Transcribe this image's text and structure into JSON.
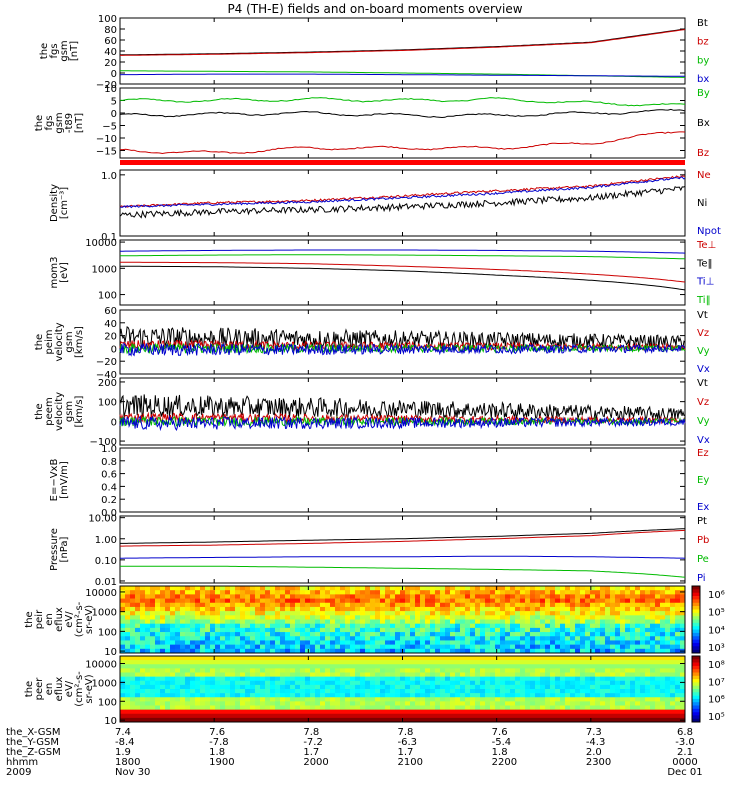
{
  "title": "P4 (TH-E) fields and on-board moments overview",
  "ephemeris": {
    "row_labels": [
      "the_X-GSM",
      "the_Y-GSM",
      "the_Z-GSM",
      "hhmm",
      "2009"
    ],
    "columns": [
      [
        "7.4",
        "-8.4",
        "1.9",
        "1800",
        "Nov 30"
      ],
      [
        "7.6",
        "-7.8",
        "1.8",
        "1900",
        ""
      ],
      [
        "7.8",
        "-7.2",
        "1.7",
        "2000",
        ""
      ],
      [
        "7.8",
        "-6.3",
        "1.7",
        "2100",
        ""
      ],
      [
        "7.6",
        "-5.4",
        "1.8",
        "2200",
        ""
      ],
      [
        "7.3",
        "-4.3",
        "2.0",
        "2300",
        ""
      ],
      [
        "6.8",
        "-3.0",
        "2.1",
        "0000",
        "Dec 01"
      ]
    ]
  },
  "colorbar_labels": {
    "ion": [
      "10⁶",
      "10⁵",
      "10⁴",
      "10³"
    ],
    "electron": [
      "10⁸",
      "10⁷",
      "10⁶",
      "10⁵"
    ]
  },
  "chart_data": [
    {
      "type": "line",
      "ylabel": [
        "the",
        "fgs",
        "gsm",
        "[nT]"
      ],
      "ylim": [
        -20,
        100
      ],
      "ticks": [
        "100",
        "80",
        "60",
        "40",
        "20",
        "0",
        "−20"
      ],
      "tick_values": [
        100,
        80,
        60,
        40,
        20,
        0,
        -20
      ],
      "x": [
        0,
        1,
        2,
        3,
        4,
        5,
        6
      ],
      "series": [
        {
          "name": "Bt",
          "color": "#000000",
          "values": [
            33,
            35,
            38,
            42,
            48,
            56,
            80
          ]
        },
        {
          "name": "bz",
          "color": "#cc0000",
          "values": [
            32,
            34,
            37,
            41,
            47,
            55,
            79
          ]
        },
        {
          "name": "by",
          "color": "#00bb00",
          "values": [
            4,
            3,
            2,
            0,
            -2,
            -5,
            -8
          ]
        },
        {
          "name": "bx",
          "color": "#0000cc",
          "values": [
            -3,
            -2,
            -2,
            -3,
            -4,
            -5,
            -6
          ]
        }
      ]
    },
    {
      "type": "line",
      "ylabel": [
        "the",
        "fgs",
        "gsm",
        "-t89",
        "[nT]"
      ],
      "ylim": [
        -18,
        10
      ],
      "ticks": [
        "10",
        "5",
        "0",
        "−5",
        "−10",
        "−15"
      ],
      "tick_values": [
        10,
        5,
        0,
        -5,
        -10,
        -15
      ],
      "x": [
        0,
        1,
        2,
        3,
        4,
        5,
        6
      ],
      "series": [
        {
          "name": "By",
          "color": "#00bb00",
          "values": [
            5,
            5,
            5.5,
            5,
            5.5,
            4,
            3
          ]
        },
        {
          "name": "Bx",
          "color": "#000000",
          "values": [
            -1,
            -0.5,
            0,
            -1,
            -1,
            0,
            1
          ]
        },
        {
          "name": "Bz",
          "color": "#cc0000",
          "values": [
            -15,
            -16,
            -14,
            -14,
            -14,
            -12,
            -7
          ]
        }
      ]
    },
    {
      "type": "line",
      "ylabel": [
        "Density",
        "[cm⁻³]"
      ],
      "scale": "log",
      "ylim": [
        0.1,
        1.2
      ],
      "ticks": [
        "1.0",
        "0.1"
      ],
      "tick_values": [
        1.0,
        0.1
      ],
      "x": [
        0,
        1,
        2,
        3,
        4,
        5,
        6
      ],
      "series": [
        {
          "name": "Ne",
          "color": "#cc0000",
          "values": [
            0.3,
            0.35,
            0.38,
            0.45,
            0.55,
            0.65,
            0.95
          ]
        },
        {
          "name": "Ni",
          "color": "#000000",
          "values": [
            0.22,
            0.25,
            0.27,
            0.3,
            0.35,
            0.42,
            0.6
          ]
        },
        {
          "name": "Npot",
          "color": "#0000cc",
          "values": [
            0.3,
            0.33,
            0.36,
            0.42,
            0.5,
            0.62,
            0.9
          ]
        }
      ]
    },
    {
      "type": "line",
      "ylabel": [
        "mom3",
        "[eV]"
      ],
      "scale": "log",
      "ylim": [
        40,
        12000
      ],
      "ticks": [
        "10000",
        "1000",
        "100"
      ],
      "tick_values": [
        10000,
        1000,
        100
      ],
      "x": [
        0,
        1,
        2,
        3,
        4,
        5,
        6
      ],
      "series": [
        {
          "name": "Te⊥",
          "color": "#cc0000",
          "values": [
            1700,
            1650,
            1500,
            1200,
            900,
            600,
            300
          ]
        },
        {
          "name": "Te‖",
          "color": "#000000",
          "values": [
            1200,
            1150,
            1000,
            800,
            550,
            350,
            150
          ]
        },
        {
          "name": "Ti⊥",
          "color": "#0000cc",
          "values": [
            4500,
            4800,
            5000,
            5000,
            4800,
            4500,
            3800
          ]
        },
        {
          "name": "Ti‖",
          "color": "#00bb00",
          "values": [
            3000,
            3200,
            3300,
            3200,
            3000,
            2800,
            2300
          ]
        }
      ]
    },
    {
      "type": "line",
      "ylabel": [
        "the",
        "peim",
        "velocity",
        "gsm",
        "[km/s]"
      ],
      "ylim": [
        -40,
        60
      ],
      "ticks": [
        "60",
        "40",
        "20",
        "0",
        "−20",
        "−40"
      ],
      "tick_values": [
        60,
        40,
        20,
        0,
        -20,
        -40
      ],
      "x": [
        0,
        1,
        2,
        3,
        4,
        5,
        6
      ],
      "series": [
        {
          "name": "Vt",
          "color": "#000000",
          "values": [
            18,
            16,
            15,
            14,
            13,
            12,
            10
          ]
        },
        {
          "name": "Vz",
          "color": "#cc0000",
          "values": [
            5,
            5,
            4,
            4,
            3,
            3,
            2
          ]
        },
        {
          "name": "Vy",
          "color": "#00bb00",
          "values": [
            0,
            0,
            0,
            0,
            0,
            0,
            0
          ]
        },
        {
          "name": "Vx",
          "color": "#0000cc",
          "values": [
            -2,
            -2,
            -2,
            -1,
            -1,
            -1,
            0
          ]
        }
      ]
    },
    {
      "type": "line",
      "ylabel": [
        "the",
        "peem",
        "velocity",
        "gsm",
        "[km/s]"
      ],
      "ylim": [
        -120,
        220
      ],
      "ticks": [
        "200",
        "100",
        "0",
        "−100"
      ],
      "tick_values": [
        200,
        100,
        0,
        -100
      ],
      "x": [
        0,
        1,
        2,
        3,
        4,
        5,
        6
      ],
      "series": [
        {
          "name": "Vt",
          "color": "#000000",
          "values": [
            80,
            75,
            70,
            65,
            55,
            45,
            35
          ]
        },
        {
          "name": "Vz",
          "color": "#cc0000",
          "values": [
            20,
            18,
            15,
            12,
            10,
            8,
            5
          ]
        },
        {
          "name": "Vy",
          "color": "#00bb00",
          "values": [
            0,
            0,
            0,
            0,
            0,
            0,
            0
          ]
        },
        {
          "name": "Vx",
          "color": "#0000cc",
          "values": [
            -10,
            -10,
            -8,
            -8,
            -6,
            -5,
            -3
          ]
        }
      ]
    },
    {
      "type": "line",
      "ylabel": [
        "E=−VxB",
        "[mV/m]"
      ],
      "ylim": [
        0,
        1
      ],
      "ticks": [
        "1.0",
        "0.8",
        "0.6",
        "0.4",
        "0.2",
        "0.0"
      ],
      "tick_values": [
        1.0,
        0.8,
        0.6,
        0.4,
        0.2,
        0.0
      ],
      "x": [],
      "series": [
        {
          "name": "Ez",
          "color": "#cc0000",
          "values": []
        },
        {
          "name": "Ey",
          "color": "#00bb00",
          "values": []
        },
        {
          "name": "Ex",
          "color": "#0000cc",
          "values": []
        }
      ]
    },
    {
      "type": "line",
      "ylabel": [
        "Pressure",
        "[nPa]"
      ],
      "scale": "log",
      "ylim": [
        0.008,
        12
      ],
      "ticks": [
        "10.00",
        "1.00",
        "0.10",
        "0.01"
      ],
      "tick_values": [
        10,
        1,
        0.1,
        0.01
      ],
      "x": [
        0,
        1,
        2,
        3,
        4,
        5,
        6
      ],
      "series": [
        {
          "name": "Pt",
          "color": "#000000",
          "values": [
            0.6,
            0.7,
            0.85,
            1.0,
            1.3,
            1.8,
            3.0
          ]
        },
        {
          "name": "Pb",
          "color": "#cc0000",
          "values": [
            0.45,
            0.5,
            0.6,
            0.75,
            1.0,
            1.4,
            2.5
          ]
        },
        {
          "name": "Pe",
          "color": "#00bb00",
          "values": [
            0.05,
            0.05,
            0.045,
            0.04,
            0.035,
            0.03,
            0.015
          ]
        },
        {
          "name": "Pi",
          "color": "#0000cc",
          "values": [
            0.12,
            0.13,
            0.14,
            0.14,
            0.15,
            0.14,
            0.12
          ]
        }
      ]
    },
    {
      "type": "heatmap",
      "ylabel": [
        "the",
        "peir",
        "en",
        "eflux",
        "eV/",
        "(cm²-s-",
        "sr-eV)"
      ],
      "scale": "log",
      "ylim": [
        8,
        20000
      ],
      "ticks": [
        "10000",
        "1000",
        "100",
        "10"
      ],
      "tick_values": [
        10000,
        1000,
        100,
        10
      ]
    },
    {
      "type": "heatmap",
      "ylabel": [
        "the",
        "peer",
        "en",
        "eflux",
        "eV/",
        "(cm²-s-",
        "sr-eV)"
      ],
      "scale": "log",
      "ylim": [
        8,
        25000
      ],
      "ticks": [
        "10000",
        "1000",
        "100",
        "10"
      ],
      "tick_values": [
        10000,
        1000,
        100,
        10
      ]
    }
  ]
}
